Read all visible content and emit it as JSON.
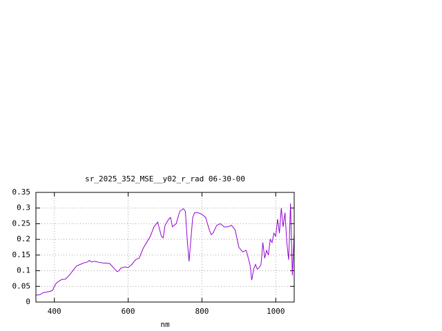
{
  "chart_data": {
    "type": "line",
    "title": "sr_2025_352_MSE__y02_r_rad 06-30-00",
    "x_label": "nm",
    "x": [
      350,
      360,
      370,
      380,
      390,
      395,
      400,
      405,
      410,
      420,
      430,
      440,
      450,
      460,
      470,
      480,
      490,
      495,
      500,
      510,
      520,
      530,
      540,
      550,
      560,
      570,
      575,
      580,
      590,
      600,
      610,
      620,
      630,
      640,
      650,
      660,
      670,
      680,
      690,
      695,
      700,
      710,
      715,
      720,
      730,
      740,
      750,
      755,
      760,
      765,
      770,
      775,
      780,
      790,
      800,
      810,
      820,
      825,
      830,
      840,
      850,
      860,
      870,
      880,
      890,
      900,
      910,
      920,
      930,
      935,
      940,
      945,
      950,
      955,
      960,
      965,
      970,
      975,
      980,
      985,
      990,
      995,
      1000,
      1005,
      1010,
      1015,
      1020,
      1025,
      1030,
      1035,
      1040,
      1045,
      1050
    ],
    "series": [
      {
        "color": "#9400d3",
        "values": [
          0.022,
          0.023,
          0.03,
          0.032,
          0.035,
          0.037,
          0.05,
          0.06,
          0.065,
          0.072,
          0.073,
          0.085,
          0.1,
          0.115,
          0.12,
          0.125,
          0.128,
          0.133,
          0.128,
          0.13,
          0.127,
          0.125,
          0.124,
          0.123,
          0.11,
          0.097,
          0.1,
          0.108,
          0.112,
          0.11,
          0.12,
          0.135,
          0.14,
          0.17,
          0.19,
          0.21,
          0.24,
          0.255,
          0.21,
          0.205,
          0.245,
          0.265,
          0.27,
          0.24,
          0.25,
          0.29,
          0.298,
          0.29,
          0.2,
          0.13,
          0.2,
          0.27,
          0.285,
          0.285,
          0.28,
          0.27,
          0.23,
          0.215,
          0.22,
          0.245,
          0.25,
          0.24,
          0.24,
          0.245,
          0.23,
          0.175,
          0.16,
          0.165,
          0.12,
          0.07,
          0.105,
          0.12,
          0.105,
          0.11,
          0.12,
          0.19,
          0.14,
          0.165,
          0.15,
          0.2,
          0.19,
          0.22,
          0.21,
          0.265,
          0.22,
          0.3,
          0.24,
          0.285,
          0.19,
          0.135,
          0.315,
          0.085,
          0.22
        ]
      }
    ],
    "xlim": [
      350,
      1050
    ],
    "xticks": [
      400,
      600,
      800,
      1000
    ],
    "ylim": [
      0,
      0.35
    ],
    "yticks": [
      0,
      0.05,
      0.1,
      0.15,
      0.2,
      0.25,
      0.3,
      0.35
    ],
    "grid": true
  }
}
